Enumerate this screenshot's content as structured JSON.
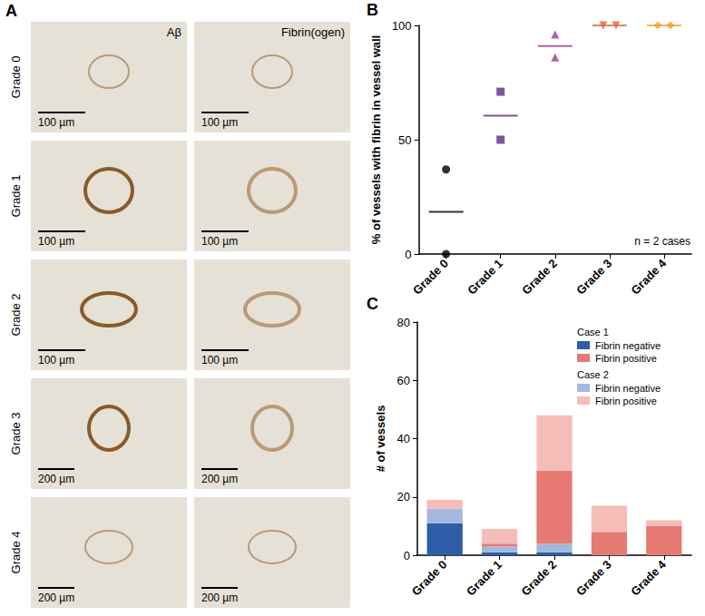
{
  "image_panel": {
    "panel": "A",
    "columns": [
      "Aβ",
      "Fibrin(ogen)"
    ],
    "rows": [
      {
        "label": "Grade 0",
        "scale_bars": [
          "100 µm",
          "100 µm"
        ]
      },
      {
        "label": "Grade 1",
        "scale_bars": [
          "100 µm",
          "100 µm"
        ]
      },
      {
        "label": "Grade 2",
        "scale_bars": [
          "100 µm",
          "100 µm"
        ]
      },
      {
        "label": "Grade 3",
        "scale_bars": [
          "200 µm",
          "200 µm"
        ]
      },
      {
        "label": "Grade 4",
        "scale_bars": [
          "200 µm",
          "200 µm"
        ]
      }
    ]
  },
  "chart_data": [
    {
      "panel": "B",
      "type": "scatter",
      "categories": [
        "Grade 0",
        "Grade 1",
        "Grade 2",
        "Grade 3",
        "Grade 4"
      ],
      "values": [
        [
          37,
          0
        ],
        [
          71,
          50
        ],
        [
          96,
          86
        ],
        [
          100,
          100
        ],
        [
          100,
          100
        ]
      ],
      "means": [
        18.5,
        60.5,
        91,
        100,
        100
      ],
      "colors": [
        "#000000",
        "#5b2a86",
        "#9c3b8f",
        "#e0663c",
        "#f0a32e"
      ],
      "markers": [
        "circle",
        "square",
        "triangle",
        "triangle-down",
        "diamond"
      ],
      "ylabel": "% of vessels with fibrin in vessel wall",
      "ylim": [
        0,
        100
      ],
      "yticks": [
        0,
        50,
        100
      ],
      "annotations": [
        "n = 2 cases"
      ],
      "grid": false
    },
    {
      "panel": "C",
      "type": "bar",
      "stacked": true,
      "categories": [
        "Grade 0",
        "Grade 1",
        "Grade 2",
        "Grade 3",
        "Grade 4"
      ],
      "series": [
        {
          "name": "Fibrin negative",
          "group": "Case 1",
          "color": "#2d5ea6",
          "values": [
            11,
            1,
            1,
            0,
            0
          ]
        },
        {
          "name": "Fibrin negative",
          "group": "Case 2",
          "color": "#a3b8dc",
          "values": [
            5,
            2,
            3,
            0,
            0
          ]
        },
        {
          "name": "Fibrin positive",
          "group": "Case 1",
          "color": "#e57a72",
          "values": [
            0,
            1,
            25,
            8,
            10
          ]
        },
        {
          "name": "Fibrin positive",
          "group": "Case 2",
          "color": "#f5bcb8",
          "values": [
            3,
            5,
            19,
            9,
            2
          ]
        }
      ],
      "ylabel": "# of vessels",
      "ylim": [
        0,
        80
      ],
      "yticks": [
        0,
        20,
        40,
        60,
        80
      ],
      "legend": "top-right",
      "grid": false
    }
  ]
}
